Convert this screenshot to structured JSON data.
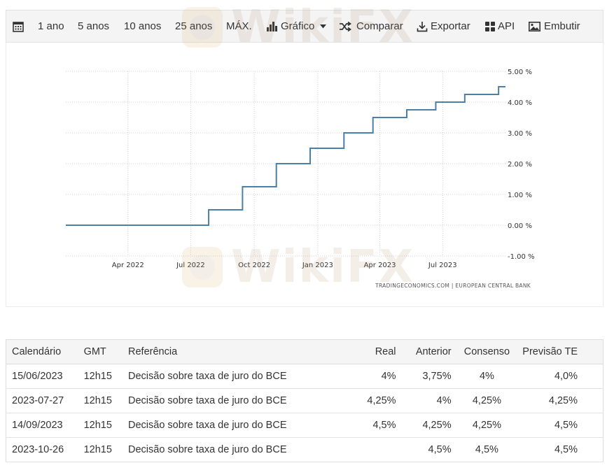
{
  "toolbar": {
    "calendar_icon": "calendar-icon",
    "ranges": [
      "1 ano",
      "5 anos",
      "10 anos",
      "25 anos",
      "MÁX."
    ],
    "chart_label": "Gráfico",
    "compare_label": "Comparar",
    "export_label": "Exportar",
    "api_label": "API",
    "embed_label": "Embutir"
  },
  "chart_data": {
    "type": "line",
    "step": true,
    "x": [
      "2022-01-01",
      "2022-07-27",
      "2022-09-14",
      "2022-11-02",
      "2022-12-21",
      "2023-02-08",
      "2023-03-22",
      "2023-05-10",
      "2023-06-21",
      "2023-08-02",
      "2023-09-20",
      "2023-09-30"
    ],
    "values": [
      0.0,
      0.5,
      1.25,
      2.0,
      2.5,
      3.0,
      3.5,
      3.75,
      4.0,
      4.25,
      4.5,
      4.5
    ],
    "x_ticks": [
      "Apr 2022",
      "Jul 2022",
      "Oct 2022",
      "Jan 2023",
      "Apr 2023",
      "Jul 2023"
    ],
    "y_ticks": [
      "5.00 %",
      "4.00 %",
      "3.00 %",
      "2.00 %",
      "1.00 %",
      "0.00 %",
      "-1.00 %"
    ],
    "ylim": [
      -1,
      5
    ],
    "grid": true,
    "line_color": "#4a7fa7",
    "source": "TRADINGECONOMICS.COM  |  EUROPEAN CENTRAL BANK"
  },
  "table": {
    "headers": {
      "date": "Calendário",
      "gmt": "GMT",
      "ref": "Referência",
      "real": "Real",
      "previous": "Anterior",
      "consensus": "Consenso",
      "forecast": "Previsão TE"
    },
    "rows": [
      {
        "date": "15/06/2023",
        "gmt": "12h15",
        "ref": "Decisão sobre taxa de juro do BCE",
        "real": "4%",
        "previous": "3,75%",
        "consensus": "4%",
        "forecast": "4,0%"
      },
      {
        "date": "2023-07-27",
        "gmt": "12h15",
        "ref": "Decisão sobre taxa de juro do BCE",
        "real": "4,25%",
        "previous": "4%",
        "consensus": "4,25%",
        "forecast": "4,25%"
      },
      {
        "date": "14/09/2023",
        "gmt": "12h15",
        "ref": "Decisão sobre taxa de juro do BCE",
        "real": "4,5%",
        "previous": "4,25%",
        "consensus": "4,25%",
        "forecast": "4,5%"
      },
      {
        "date": "2023-10-26",
        "gmt": "12h15",
        "ref": "Decisão sobre taxa de juro do BCE",
        "real": "",
        "previous": "4,5%",
        "consensus": "4,5%",
        "forecast": "4,5%"
      }
    ]
  },
  "watermark": {
    "text": "WikiFX",
    "color": "#b08060"
  }
}
